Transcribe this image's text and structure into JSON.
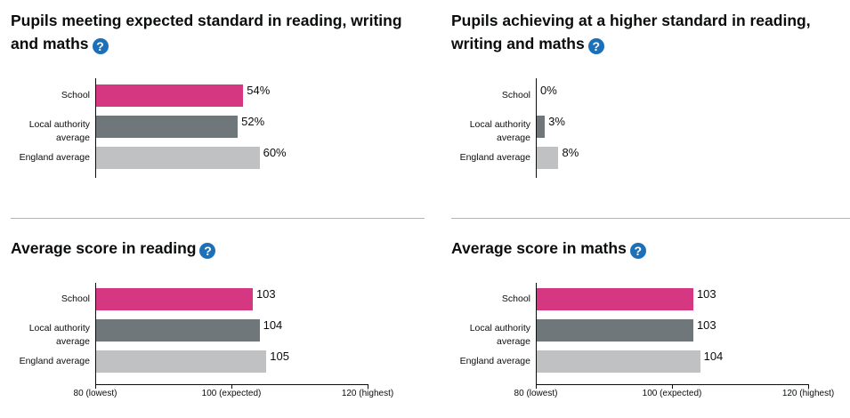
{
  "help_glyph": "?",
  "colors": {
    "school": "#d53880",
    "local": "#6f777b",
    "england": "#bfc1c3"
  },
  "chart_data": [
    {
      "type": "bar",
      "title": "Pupils meeting expected standard in reading, writing and maths",
      "title_lines": [
        "Pupils meeting expected standard in reading, writing",
        "and maths"
      ],
      "categories": [
        [
          "School"
        ],
        [
          "Local authority",
          "average"
        ],
        [
          "England average"
        ]
      ],
      "values": [
        54,
        52,
        60
      ],
      "value_labels": [
        "54%",
        "52%",
        "60%"
      ],
      "xlim": [
        0,
        100
      ],
      "x_axis_visible": false
    },
    {
      "type": "bar",
      "title": "Pupils achieving at a higher standard in reading, writing and maths",
      "title_lines": [
        "Pupils achieving at a higher standard in reading,",
        "writing and maths"
      ],
      "categories": [
        [
          "School"
        ],
        [
          "Local authority",
          "average"
        ],
        [
          "England average"
        ]
      ],
      "values": [
        0,
        3,
        8
      ],
      "value_labels": [
        "0%",
        "3%",
        "8%"
      ],
      "xlim": [
        0,
        100
      ],
      "x_axis_visible": false
    },
    {
      "type": "bar",
      "title": "Average score in reading",
      "title_lines": [
        "Average score in reading"
      ],
      "categories": [
        [
          "School"
        ],
        [
          "Local authority",
          "average"
        ],
        [
          "England average"
        ]
      ],
      "values": [
        103,
        104,
        105
      ],
      "value_labels": [
        "103",
        "104",
        "105"
      ],
      "xlim": [
        80,
        120
      ],
      "x_axis_visible": true,
      "ticks": [
        80,
        100,
        120
      ],
      "tick_labels": [
        "80 (lowest)",
        "100 (expected)",
        "120 (highest)"
      ]
    },
    {
      "type": "bar",
      "title": "Average score in maths",
      "title_lines": [
        "Average score in maths"
      ],
      "categories": [
        [
          "School"
        ],
        [
          "Local authority",
          "average"
        ],
        [
          "England average"
        ]
      ],
      "values": [
        103,
        103,
        104
      ],
      "value_labels": [
        "103",
        "103",
        "104"
      ],
      "xlim": [
        80,
        120
      ],
      "x_axis_visible": true,
      "ticks": [
        80,
        100,
        120
      ],
      "tick_labels": [
        "80 (lowest)",
        "100 (expected)",
        "120 (highest)"
      ]
    }
  ]
}
